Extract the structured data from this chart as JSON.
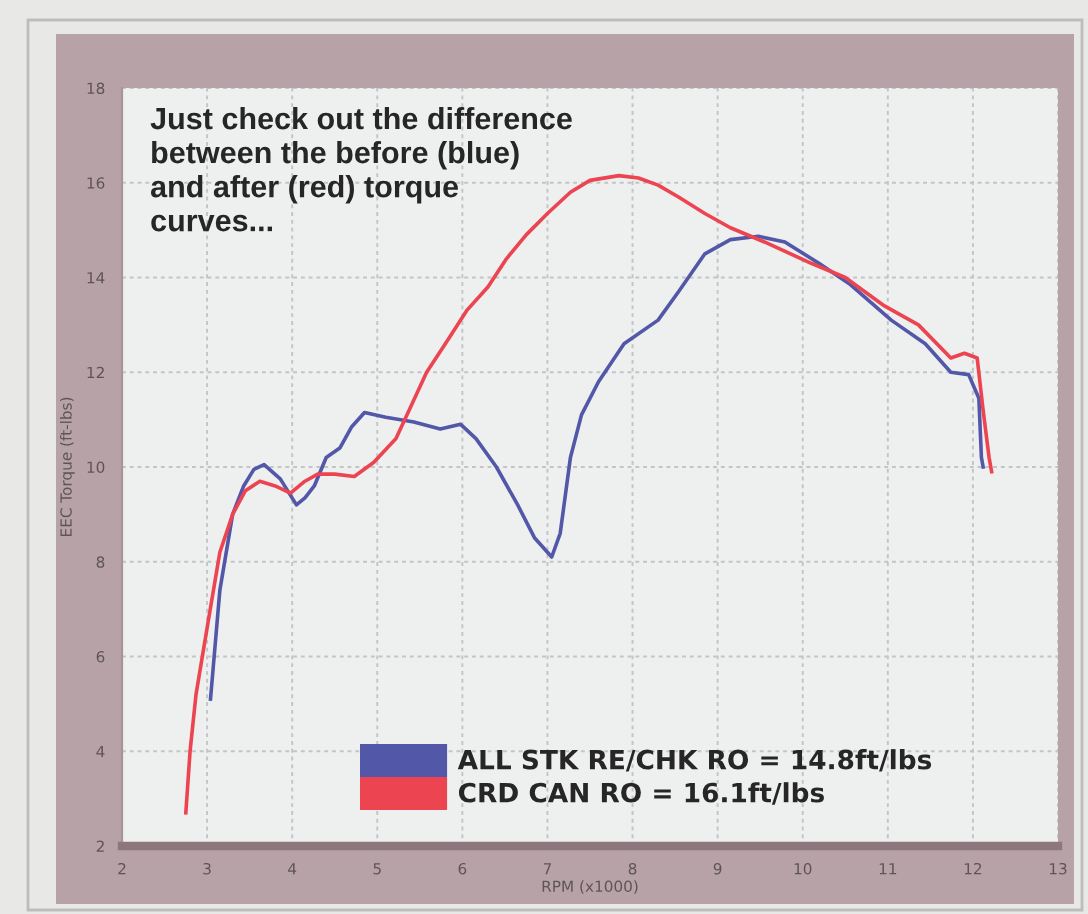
{
  "chart_data": {
    "type": "line",
    "annotations": [
      "Just check out the difference\nbetween the before (blue)\nand after (red) torque\ncurves..."
    ],
    "xlabel": "RPM (x1000)",
    "ylabel": "EEC Torque (ft-lbs)",
    "xlim": [
      2,
      13
    ],
    "ylim": [
      2,
      18
    ],
    "xticks": [
      2,
      3,
      4,
      5,
      6,
      7,
      8,
      9,
      10,
      11,
      12,
      13
    ],
    "yticks": [
      2,
      4,
      6,
      8,
      10,
      12,
      14,
      16,
      18
    ],
    "grid": true,
    "legend": "bottom",
    "line_style": "solid",
    "series": [
      {
        "name": "ALL STK RE/CHK RO = 14.8ft/lbs",
        "color": "#5257a8",
        "x": [
          3.04,
          3.15,
          3.3,
          3.43,
          3.55,
          3.67,
          3.86,
          4.05,
          4.15,
          4.26,
          4.4,
          4.56,
          4.7,
          4.85,
          5.1,
          5.43,
          5.74,
          5.98,
          6.16,
          6.4,
          6.65,
          6.85,
          7.05,
          7.15,
          7.27,
          7.4,
          7.6,
          7.9,
          8.3,
          8.54,
          8.85,
          9.15,
          9.48,
          9.79,
          10.19,
          10.56,
          11.04,
          11.44,
          11.74,
          11.95,
          12.07,
          12.1,
          12.12
        ],
        "values": [
          5.1,
          7.4,
          9.0,
          9.6,
          9.95,
          10.05,
          9.75,
          9.2,
          9.35,
          9.6,
          10.2,
          10.4,
          10.85,
          11.15,
          11.05,
          10.95,
          10.8,
          10.9,
          10.6,
          10.0,
          9.2,
          8.5,
          8.1,
          8.6,
          10.2,
          11.1,
          11.8,
          12.6,
          13.1,
          13.7,
          14.5,
          14.8,
          14.87,
          14.75,
          14.3,
          13.85,
          13.1,
          12.6,
          12.0,
          11.95,
          11.45,
          10.2,
          10.0
        ]
      },
      {
        "name": "CRD CAN RO = 16.1ft/lbs",
        "color": "#ec4450",
        "x": [
          2.75,
          2.8,
          2.87,
          3.0,
          3.15,
          3.3,
          3.45,
          3.62,
          3.8,
          3.98,
          4.15,
          4.3,
          4.5,
          4.73,
          4.96,
          5.22,
          5.4,
          5.58,
          5.8,
          6.05,
          6.3,
          6.52,
          6.75,
          7.0,
          7.27,
          7.5,
          7.84,
          8.07,
          8.3,
          8.54,
          8.85,
          9.15,
          9.55,
          10.1,
          10.5,
          10.96,
          11.36,
          11.74,
          11.9,
          12.05,
          12.12,
          12.19,
          12.22
        ],
        "values": [
          2.7,
          4.0,
          5.2,
          6.6,
          8.2,
          9.0,
          9.5,
          9.7,
          9.6,
          9.45,
          9.7,
          9.85,
          9.85,
          9.8,
          10.1,
          10.6,
          11.3,
          12.0,
          12.6,
          13.3,
          13.8,
          14.4,
          14.9,
          15.35,
          15.8,
          16.05,
          16.15,
          16.1,
          15.95,
          15.7,
          15.35,
          15.05,
          14.75,
          14.3,
          14.0,
          13.4,
          13.0,
          12.3,
          12.4,
          12.3,
          11.2,
          10.2,
          9.9
        ]
      }
    ]
  }
}
